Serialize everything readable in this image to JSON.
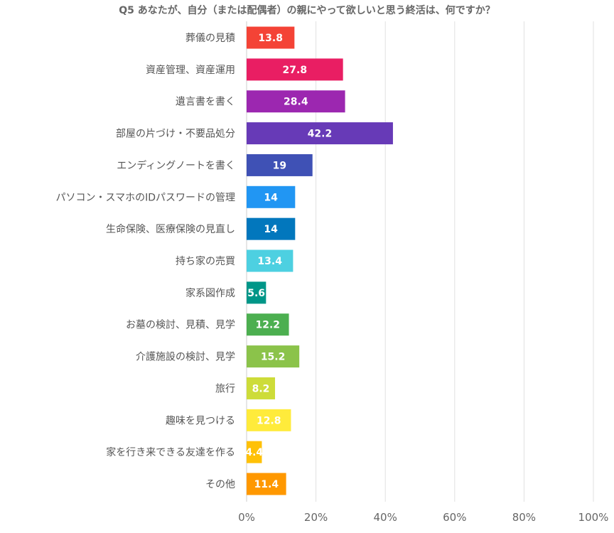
{
  "chart_data": {
    "type": "bar",
    "orientation": "horizontal",
    "title": "Q5 あなたが、自分（または配偶者）の親にやって欲しいと思う終活は、何ですか？",
    "categories": [
      "葬儀の見積",
      "資産管理、資産運用",
      "遺言書を書く",
      "部屋の片づけ・不要品処分",
      "エンディングノートを書く",
      "パソコン・スマホのIDパスワードの管理",
      "生命保険、医療保険の見直し",
      "持ち家の売買",
      "家系図作成",
      "お墓の検討、見積、見学",
      "介護施設の検討、見学",
      "旅行",
      "趣味を見つける",
      "家を行き来できる友達を作る",
      "その他"
    ],
    "values": [
      13.8,
      27.8,
      28.4,
      42.2,
      19,
      14,
      14,
      13.4,
      5.6,
      12.2,
      15.2,
      8.2,
      12.8,
      4.4,
      11.4
    ],
    "value_labels": [
      "13.8",
      "27.8",
      "28.4",
      "42.2",
      "19",
      "14",
      "14",
      "13.4",
      "5.6",
      "12.2",
      "15.2",
      "8.2",
      "12.8",
      "4.4",
      "11.4"
    ],
    "colors": [
      "#f44336",
      "#e91e63",
      "#9c27b0",
      "#673ab7",
      "#3f51b5",
      "#2196f3",
      "#0277bd",
      "#4dd0e1",
      "#009688",
      "#4caf50",
      "#8bc34a",
      "#cddc39",
      "#ffeb3b",
      "#ffc107",
      "#ff9800"
    ],
    "xlim": [
      0,
      100
    ],
    "xticks": [
      "0%",
      "20%",
      "40%",
      "60%",
      "80%",
      "100%"
    ],
    "xtick_values": [
      0,
      20,
      40,
      60,
      80,
      100
    ],
    "grid": true,
    "legend": "none"
  }
}
